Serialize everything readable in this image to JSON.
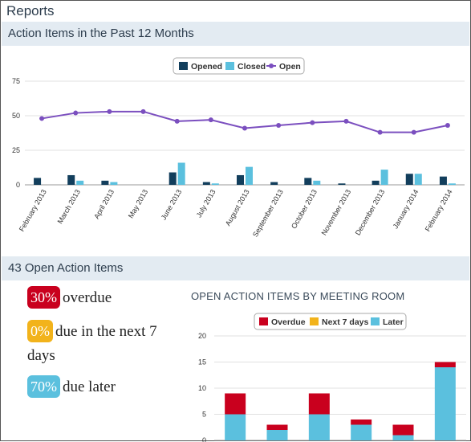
{
  "page": {
    "title": "Reports"
  },
  "section1": {
    "title": "Action Items in the Past 12 Months"
  },
  "section2": {
    "title": "43 Open Action Items"
  },
  "colors": {
    "opened": "#123e5c",
    "closed": "#5bc0de",
    "open_line": "#7b4fbf",
    "overdue": "#c9001e",
    "next7": "#f2b31b",
    "later": "#5bc0de"
  },
  "stats": [
    {
      "badge": "30%",
      "text": "overdue",
      "color": "#c9001e"
    },
    {
      "badge": "0%",
      "text": "due in the next 7 days",
      "color": "#f2b31b"
    },
    {
      "badge": "70%",
      "text": "due later",
      "color": "#5bc0de"
    }
  ],
  "chart_data": [
    {
      "type": "bar",
      "title": "",
      "categories": [
        "February 2013",
        "March 2013",
        "April 2013",
        "May 2013",
        "June 2013",
        "July 2013",
        "August 2013",
        "September 2013",
        "October 2013",
        "November 2013",
        "December 2013",
        "January 2014",
        "February 2014"
      ],
      "series": [
        {
          "name": "Opened",
          "kind": "bar",
          "values": [
            5,
            7,
            3,
            0,
            9,
            2,
            7,
            2,
            5,
            1,
            3,
            8,
            6
          ]
        },
        {
          "name": "Closed",
          "kind": "bar",
          "values": [
            0,
            3,
            2,
            0,
            16,
            1,
            13,
            0,
            3,
            0,
            11,
            8,
            1
          ]
        },
        {
          "name": "Open",
          "kind": "line",
          "values": [
            48,
            52,
            53,
            53,
            46,
            47,
            41,
            43,
            45,
            46,
            38,
            38,
            43
          ]
        }
      ],
      "yticks": [
        0,
        25,
        50,
        75
      ],
      "ylim": [
        0,
        75
      ],
      "legend": "top-center",
      "grid": true
    },
    {
      "type": "bar",
      "stacked": true,
      "title": "OPEN ACTION ITEMS BY MEETING ROOM",
      "categories": [
        "",
        "",
        "",
        "",
        "",
        ""
      ],
      "series": [
        {
          "name": "Later",
          "values": [
            5,
            2,
            5,
            3,
            1,
            14
          ]
        },
        {
          "name": "Next 7 days",
          "values": [
            0,
            0,
            0,
            0,
            0,
            0
          ]
        },
        {
          "name": "Overdue",
          "values": [
            4,
            1,
            4,
            1,
            2,
            1
          ]
        }
      ],
      "yticks": [
        0,
        5,
        10,
        15,
        20
      ],
      "ylim": [
        0,
        20
      ],
      "legend": "top-center",
      "grid": true
    }
  ]
}
